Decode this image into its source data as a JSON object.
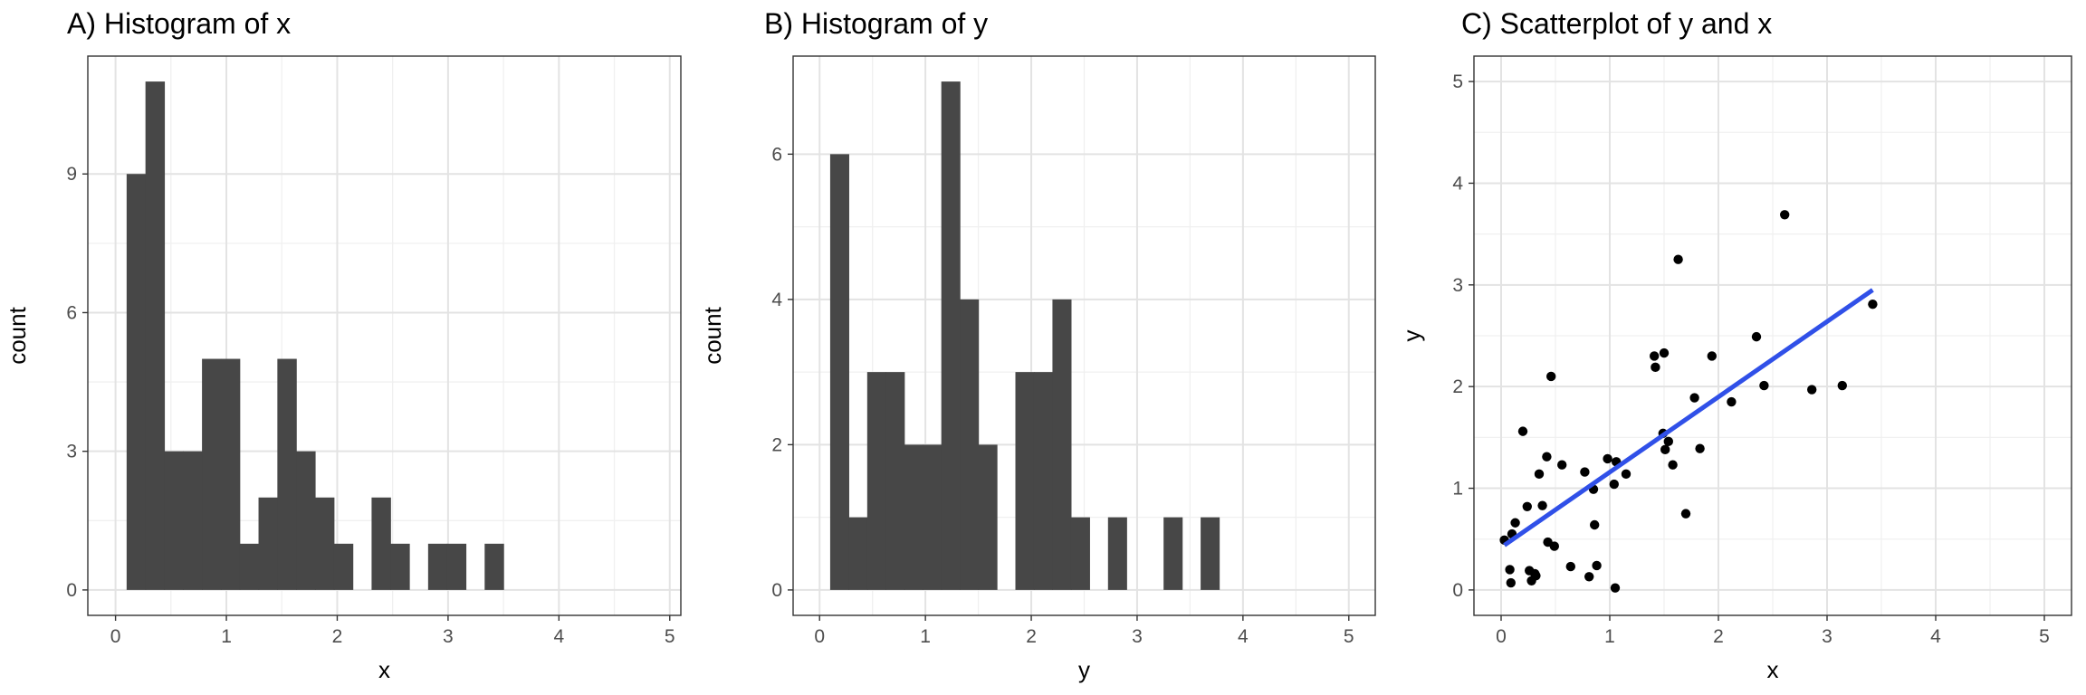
{
  "chart_data": [
    {
      "type": "bar",
      "title": "A) Histogram of x",
      "xlabel": "x",
      "ylabel": "count",
      "xlim": [
        -0.25,
        5.1
      ],
      "ylim": [
        -0.55,
        11.55
      ],
      "xticks": [
        0,
        1,
        2,
        3,
        4,
        5
      ],
      "yticks": [
        0,
        3,
        6,
        9
      ],
      "bin_width": 0.17,
      "bins": [
        {
          "x0": 0.1,
          "count": 9
        },
        {
          "x0": 0.27,
          "count": 11
        },
        {
          "x0": 0.44,
          "count": 3
        },
        {
          "x0": 0.61,
          "count": 3
        },
        {
          "x0": 0.78,
          "count": 5
        },
        {
          "x0": 0.95,
          "count": 5
        },
        {
          "x0": 1.12,
          "count": 1
        },
        {
          "x0": 1.29,
          "count": 2
        },
        {
          "x0": 1.46,
          "count": 5
        },
        {
          "x0": 1.63,
          "count": 3
        },
        {
          "x0": 1.8,
          "count": 2
        },
        {
          "x0": 1.97,
          "count": 1
        },
        {
          "x0": 2.14,
          "count": 0
        },
        {
          "x0": 2.31,
          "count": 2
        },
        {
          "x0": 2.48,
          "count": 1
        },
        {
          "x0": 2.65,
          "count": 0
        },
        {
          "x0": 2.82,
          "count": 1
        },
        {
          "x0": 2.99,
          "count": 1
        },
        {
          "x0": 3.16,
          "count": 0
        },
        {
          "x0": 3.33,
          "count": 1
        }
      ],
      "bar_color": "#474747",
      "grid": true
    },
    {
      "type": "bar",
      "title": "B) Histogram of y",
      "xlabel": "y",
      "ylabel": "count",
      "xlim": [
        -0.25,
        5.25
      ],
      "ylim": [
        -0.35,
        7.35
      ],
      "xticks": [
        0,
        1,
        2,
        3,
        4,
        5
      ],
      "yticks": [
        0,
        2,
        4,
        6
      ],
      "bin_width": 0.175,
      "bins": [
        {
          "x0": 0.1,
          "count": 6
        },
        {
          "x0": 0.275,
          "count": 1
        },
        {
          "x0": 0.45,
          "count": 3
        },
        {
          "x0": 0.625,
          "count": 3
        },
        {
          "x0": 0.8,
          "count": 2
        },
        {
          "x0": 0.975,
          "count": 2
        },
        {
          "x0": 1.15,
          "count": 7
        },
        {
          "x0": 1.325,
          "count": 4
        },
        {
          "x0": 1.5,
          "count": 2
        },
        {
          "x0": 1.675,
          "count": 0
        },
        {
          "x0": 1.85,
          "count": 3
        },
        {
          "x0": 2.025,
          "count": 3
        },
        {
          "x0": 2.2,
          "count": 4
        },
        {
          "x0": 2.375,
          "count": 1
        },
        {
          "x0": 2.55,
          "count": 0
        },
        {
          "x0": 2.725,
          "count": 1
        },
        {
          "x0": 2.9,
          "count": 0
        },
        {
          "x0": 3.075,
          "count": 0
        },
        {
          "x0": 3.25,
          "count": 1
        },
        {
          "x0": 3.425,
          "count": 0
        },
        {
          "x0": 3.6,
          "count": 1
        }
      ],
      "bar_color": "#474747",
      "grid": true
    },
    {
      "type": "scatter",
      "title": "C) Scatterplot of y and x",
      "xlabel": "x",
      "ylabel": "y",
      "xlim": [
        -0.25,
        5.25
      ],
      "ylim": [
        -0.25,
        5.25
      ],
      "xticks": [
        0,
        1,
        2,
        3,
        4,
        5
      ],
      "yticks": [
        0,
        1,
        2,
        3,
        4,
        5
      ],
      "points": [
        [
          0.03,
          0.49
        ],
        [
          0.08,
          0.2
        ],
        [
          0.1,
          0.55
        ],
        [
          0.09,
          0.07
        ],
        [
          0.13,
          0.66
        ],
        [
          0.2,
          1.56
        ],
        [
          0.24,
          0.82
        ],
        [
          0.26,
          0.19
        ],
        [
          0.28,
          0.09
        ],
        [
          0.31,
          0.16
        ],
        [
          0.32,
          0.14
        ],
        [
          0.35,
          1.14
        ],
        [
          0.38,
          0.83
        ],
        [
          0.42,
          1.31
        ],
        [
          0.43,
          0.47
        ],
        [
          0.46,
          2.1
        ],
        [
          0.49,
          0.43
        ],
        [
          0.56,
          1.23
        ],
        [
          0.64,
          0.23
        ],
        [
          0.77,
          1.16
        ],
        [
          0.81,
          0.13
        ],
        [
          0.85,
          0.99
        ],
        [
          0.86,
          0.64
        ],
        [
          0.88,
          0.24
        ],
        [
          0.98,
          1.29
        ],
        [
          1.04,
          1.04
        ],
        [
          1.06,
          1.26
        ],
        [
          1.05,
          0.02
        ],
        [
          1.15,
          1.14
        ],
        [
          1.41,
          2.3
        ],
        [
          1.42,
          2.19
        ],
        [
          1.49,
          1.54
        ],
        [
          1.5,
          2.33
        ],
        [
          1.51,
          1.38
        ],
        [
          1.54,
          1.46
        ],
        [
          1.58,
          1.23
        ],
        [
          1.63,
          3.25
        ],
        [
          1.7,
          0.75
        ],
        [
          1.78,
          1.89
        ],
        [
          1.83,
          1.39
        ],
        [
          1.94,
          2.3
        ],
        [
          2.12,
          1.85
        ],
        [
          2.35,
          2.49
        ],
        [
          2.42,
          2.01
        ],
        [
          2.61,
          3.69
        ],
        [
          2.86,
          1.97
        ],
        [
          3.14,
          2.01
        ],
        [
          3.42,
          2.81
        ]
      ],
      "point_color": "#000000",
      "fit_line": {
        "x": [
          0.03,
          3.42
        ],
        "y": [
          0.44,
          2.95
        ],
        "color": "#3050e8"
      },
      "grid": true
    }
  ]
}
